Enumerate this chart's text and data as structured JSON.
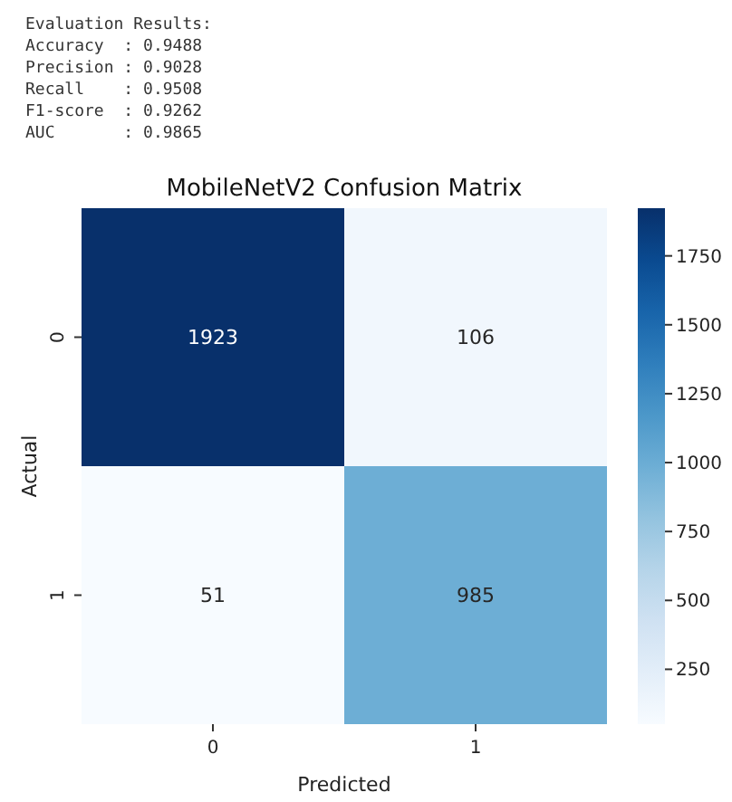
{
  "chart_data": {
    "type": "heatmap",
    "title": "MobileNetV2 Confusion Matrix",
    "xlabel": "Predicted",
    "ylabel": "Actual",
    "annotations": [
      "Evaluation Results:",
      "Accuracy  : 0.9488",
      "Precision : 0.9028",
      "Recall    : 0.9508",
      "F1-score  : 0.9262",
      "AUC       : 0.9865"
    ],
    "categories": [
      "0",
      "1"
    ],
    "y_categories": [
      "0",
      "1"
    ],
    "cells": [
      [
        1923,
        106
      ],
      [
        51,
        985
      ]
    ],
    "clim": [
      51,
      1923
    ],
    "cticks": [
      250,
      500,
      750,
      1000,
      1250,
      1500,
      1750
    ],
    "data_labels": true
  }
}
